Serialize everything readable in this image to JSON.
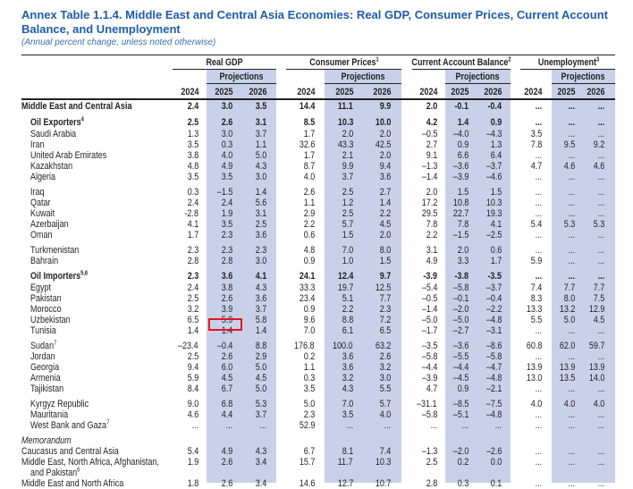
{
  "title": "Annex Table 1.1.4. Middle East and Central Asia Economies: Real GDP, Consumer Prices, Current Account Balance, and Unemployment",
  "subtitle": "(Annual percent change, unless noted otherwise)",
  "headers": {
    "groups": [
      {
        "label": "Real GDP",
        "sup": ""
      },
      {
        "label": "Consumer Prices",
        "sup": "1"
      },
      {
        "label": "Current Account Balance",
        "sup": "2"
      },
      {
        "label": "Unemployment",
        "sup": "3"
      }
    ],
    "projections": "Projections",
    "years": [
      "2024",
      "2025",
      "2026"
    ]
  },
  "colors": {
    "title": "#1f5ca8",
    "band": "#c9d1ea",
    "highlight": "#e8141c"
  },
  "highlighted_cell": {
    "row": "Tunisia",
    "column": "Real GDP 2025",
    "value": "1.4"
  },
  "rows": [
    {
      "label": "Middle East and Central Asia",
      "sup": "",
      "style": "top",
      "v": [
        "2.4",
        "3.0",
        "3.5",
        "14.4",
        "11.1",
        "9.9",
        "2.0",
        "-0.1",
        "-0.4",
        "...",
        "...",
        "..."
      ]
    },
    {
      "gap": 1
    },
    {
      "label": "Oil Exporters",
      "sup": "4",
      "style": "group",
      "v": [
        "2.5",
        "2.6",
        "3.1",
        "8.5",
        "10.3",
        "10.0",
        "4.2",
        "1.4",
        "0.9",
        "...",
        "...",
        "..."
      ]
    },
    {
      "label": "Saudi Arabia",
      "sup": "",
      "style": "c",
      "v": [
        "1.3",
        "3.0",
        "3.7",
        "1.7",
        "2.0",
        "2.0",
        "–0.5",
        "–4.0",
        "–4.3",
        "3.5",
        "...",
        "..."
      ]
    },
    {
      "label": "Iran",
      "sup": "",
      "style": "c",
      "v": [
        "3.5",
        "0.3",
        "1.1",
        "32.6",
        "43.3",
        "42.5",
        "2.7",
        "0.9",
        "1.3",
        "7.8",
        "9.5",
        "9.2"
      ]
    },
    {
      "label": "United Arab Emirates",
      "sup": "",
      "style": "c",
      "v": [
        "3.8",
        "4.0",
        "5.0",
        "1.7",
        "2.1",
        "2.0",
        "9.1",
        "6.6",
        "6.4",
        "...",
        "...",
        "..."
      ]
    },
    {
      "label": "Kazakhstan",
      "sup": "",
      "style": "c",
      "v": [
        "4.8",
        "4.9",
        "4.3",
        "8.7",
        "9.9",
        "9.4",
        "–1.3",
        "–3.6",
        "–3.7",
        "4.7",
        "4.6",
        "4.6"
      ]
    },
    {
      "label": "Algeria",
      "sup": "",
      "style": "c",
      "v": [
        "3.5",
        "3.5",
        "3.0",
        "4.0",
        "3.7",
        "3.6",
        "–1.4",
        "–3.9",
        "–4.6",
        "...",
        "...",
        "..."
      ]
    },
    {
      "gap": 1
    },
    {
      "label": "Iraq",
      "sup": "",
      "style": "c",
      "v": [
        "0.3",
        "–1.5",
        "1.4",
        "2.6",
        "2.5",
        "2.7",
        "2.0",
        "1.5",
        "1.5",
        "...",
        "...",
        "..."
      ]
    },
    {
      "label": "Qatar",
      "sup": "",
      "style": "c",
      "v": [
        "2.4",
        "2.4",
        "5.6",
        "1.1",
        "1.2",
        "1.4",
        "17.2",
        "10.8",
        "10.3",
        "...",
        "...",
        "..."
      ]
    },
    {
      "label": "Kuwait",
      "sup": "",
      "style": "c",
      "v": [
        "-2.8",
        "1.9",
        "3.1",
        "2.9",
        "2.5",
        "2.2",
        "29.5",
        "22.7",
        "19.3",
        "...",
        "...",
        "..."
      ]
    },
    {
      "label": "Azerbaijan",
      "sup": "",
      "style": "c",
      "v": [
        "4.1",
        "3.5",
        "2.5",
        "2.2",
        "5.7",
        "4.5",
        "7.8",
        "7.8",
        "4.1",
        "5.4",
        "5.3",
        "5.3"
      ]
    },
    {
      "label": "Oman",
      "sup": "",
      "style": "c",
      "v": [
        "1.7",
        "2.3",
        "3.6",
        "0.6",
        "1.5",
        "2.0",
        "2.2",
        "–1.5",
        "–2.5",
        "...",
        "...",
        "..."
      ]
    },
    {
      "gap": 1
    },
    {
      "label": "Turkmenistan",
      "sup": "",
      "style": "c",
      "v": [
        "2.3",
        "2.3",
        "2.3",
        "4.8",
        "7.0",
        "8.0",
        "3.1",
        "2.0",
        "0.6",
        "...",
        "...",
        "..."
      ]
    },
    {
      "label": "Bahrain",
      "sup": "",
      "style": "c",
      "v": [
        "2.8",
        "2.8",
        "3.0",
        "0.9",
        "1.0",
        "1.5",
        "4.9",
        "3.3",
        "1.7",
        "5.9",
        "...",
        "..."
      ]
    },
    {
      "gap": 1
    },
    {
      "label": "Oil Importers",
      "sup": "5,6",
      "style": "group",
      "v": [
        "2.3",
        "3.6",
        "4.1",
        "24.1",
        "12.4",
        "9.7",
        "-3.9",
        "-3.8",
        "-3.5",
        "...",
        "...",
        "..."
      ]
    },
    {
      "label": "Egypt",
      "sup": "",
      "style": "c",
      "v": [
        "2.4",
        "3.8",
        "4.3",
        "33.3",
        "19.7",
        "12.5",
        "–5.4",
        "–5.8",
        "–3.7",
        "7.4",
        "7.7",
        "7.7"
      ]
    },
    {
      "label": "Pakistan",
      "sup": "",
      "style": "c",
      "v": [
        "2.5",
        "2.6",
        "3.6",
        "23.4",
        "5.1",
        "7.7",
        "–0.5",
        "–0.1",
        "–0.4",
        "8.3",
        "8.0",
        "7.5"
      ]
    },
    {
      "label": "Morocco",
      "sup": "",
      "style": "c",
      "v": [
        "3.2",
        "3.9",
        "3.7",
        "0.9",
        "2.2",
        "2.3",
        "–1.4",
        "–2.0",
        "–2.2",
        "13.3",
        "13.2",
        "12.9"
      ]
    },
    {
      "label": "Uzbekistan",
      "sup": "",
      "style": "c",
      "v": [
        "6.5",
        "5.9",
        "5.8",
        "9.6",
        "8.8",
        "7.2",
        "–5.0",
        "–5.0",
        "–4.8",
        "5.5",
        "5.0",
        "4.5"
      ]
    },
    {
      "label": "Tunisia",
      "sup": "",
      "style": "c",
      "v": [
        "1.4",
        "1.4",
        "1.4",
        "7.0",
        "6.1",
        "6.5",
        "–1.7",
        "–2.7",
        "–3.1",
        "...",
        "...",
        "..."
      ]
    },
    {
      "gap": 1
    },
    {
      "label": "Sudan",
      "sup": "7",
      "style": "c",
      "v": [
        "–23.4",
        "–0.4",
        "8.8",
        "176.8",
        "100.0",
        "63.2",
        "–3.5",
        "–3.6",
        "–8.6",
        "60.8",
        "62.0",
        "59.7"
      ]
    },
    {
      "label": "Jordan",
      "sup": "",
      "style": "c",
      "v": [
        "2.5",
        "2.6",
        "2.9",
        "0.2",
        "3.6",
        "2.6",
        "–5.8",
        "–5.5",
        "–5.8",
        "...",
        "...",
        "..."
      ]
    },
    {
      "label": "Georgia",
      "sup": "",
      "style": "c",
      "v": [
        "9.4",
        "6.0",
        "5.0",
        "1.1",
        "3.6",
        "3.2",
        "–4.4",
        "–4.4",
        "–4.7",
        "13.9",
        "13.9",
        "13.9"
      ]
    },
    {
      "label": "Armenia",
      "sup": "",
      "style": "c",
      "v": [
        "5.9",
        "4.5",
        "4.5",
        "0.3",
        "3.2",
        "3.0",
        "–3.9",
        "–4.5",
        "–4.8",
        "13.0",
        "13.5",
        "14.0"
      ]
    },
    {
      "label": "Tajikistan",
      "sup": "",
      "style": "c",
      "v": [
        "8.4",
        "6.7",
        "5.0",
        "3.5",
        "4.3",
        "5.5",
        "4.7",
        "0.9",
        "–2.1",
        "...",
        "...",
        "..."
      ]
    },
    {
      "gap": 1
    },
    {
      "label": "Kyrgyz Republic",
      "sup": "",
      "style": "c",
      "v": [
        "9.0",
        "6.8",
        "5.3",
        "5.0",
        "7.0",
        "5.7",
        "–31.1",
        "–8.5",
        "–7.5",
        "4.0",
        "4.0",
        "4.0"
      ]
    },
    {
      "label": "Mauritania",
      "sup": "",
      "style": "c",
      "v": [
        "4.6",
        "4.4",
        "3.7",
        "2.3",
        "3.5",
        "4.0",
        "–5.8",
        "–5.1",
        "–4.8",
        "...",
        "...",
        "..."
      ]
    },
    {
      "label": "West Bank and Gaza",
      "sup": "7",
      "style": "c",
      "v": [
        "...",
        "...",
        "...",
        "52.9",
        "...",
        "...",
        "...",
        "...",
        "...",
        "...",
        "...",
        "..."
      ]
    },
    {
      "gap": 1
    },
    {
      "label": "Memorandum",
      "sup": "",
      "style": "memo",
      "v": []
    },
    {
      "label": "Caucasus and Central Asia",
      "sup": "",
      "style": "m",
      "v": [
        "5.4",
        "4.9",
        "4.3",
        "6.7",
        "8.1",
        "7.4",
        "–1.3",
        "–2.0",
        "–2.6",
        "...",
        "...",
        "..."
      ]
    },
    {
      "label": "Middle East, North Africa, Afghanistan,",
      "sup": "",
      "style": "m",
      "v": [
        "1.9",
        "2.6",
        "3.4",
        "15.7",
        "11.7",
        "10.3",
        "2.5",
        "0.2",
        "0.0",
        "...",
        "...",
        "..."
      ]
    },
    {
      "label": "and Pakistan",
      "sup": "6",
      "style": "c",
      "v": []
    },
    {
      "label": "Middle East and North Africa",
      "sup": "",
      "style": "m",
      "v": [
        "1.8",
        "2.6",
        "3.4",
        "14.6",
        "12.7",
        "10.7",
        "2.8",
        "0.3",
        "0.1",
        "...",
        "...",
        "..."
      ]
    }
  ]
}
